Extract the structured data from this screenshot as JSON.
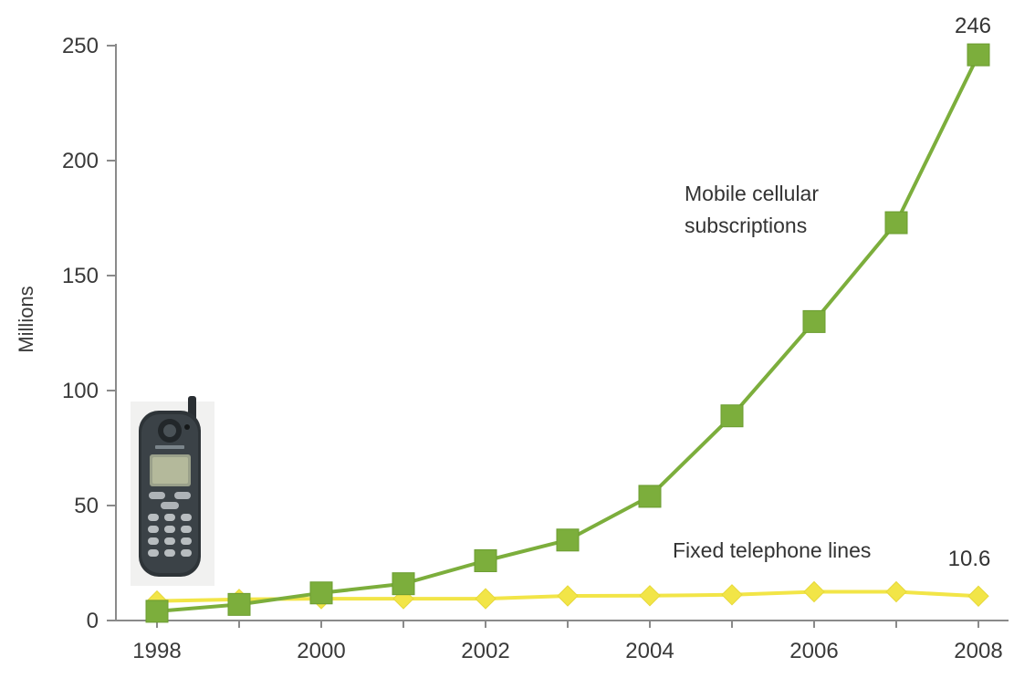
{
  "chart_data": {
    "type": "line",
    "title": "",
    "xlabel": "",
    "ylabel": "Millions",
    "x": [
      1998,
      1999,
      2000,
      2001,
      2002,
      2003,
      2004,
      2005,
      2006,
      2007,
      2008
    ],
    "xticks": [
      "1998",
      "2000",
      "2002",
      "2004",
      "2006",
      "2008"
    ],
    "yticks": [
      "0",
      "50",
      "100",
      "150",
      "200",
      "250"
    ],
    "xlim": [
      1998,
      2008
    ],
    "ylim": [
      0,
      250
    ],
    "grid": false,
    "legend": "none",
    "series": [
      {
        "name": "Mobile cellular subscriptions",
        "label_lines": [
          "Mobile cellular",
          "subscriptions"
        ],
        "marker": "square",
        "color": "#7cae3c",
        "values": [
          4,
          7,
          12,
          16,
          26,
          35,
          54,
          89,
          130,
          173,
          246
        ],
        "end_label": "246"
      },
      {
        "name": "Fixed telephone lines",
        "label_lines": [
          "Fixed telephone lines"
        ],
        "marker": "diamond",
        "color": "#f2e547",
        "values": [
          8.5,
          9.2,
          9.5,
          9.5,
          9.5,
          10.7,
          10.8,
          11.2,
          12.5,
          12.5,
          10.6
        ],
        "end_label": "10.6"
      }
    ],
    "image": {
      "icon": "mobile-phone-photo-icon"
    }
  }
}
